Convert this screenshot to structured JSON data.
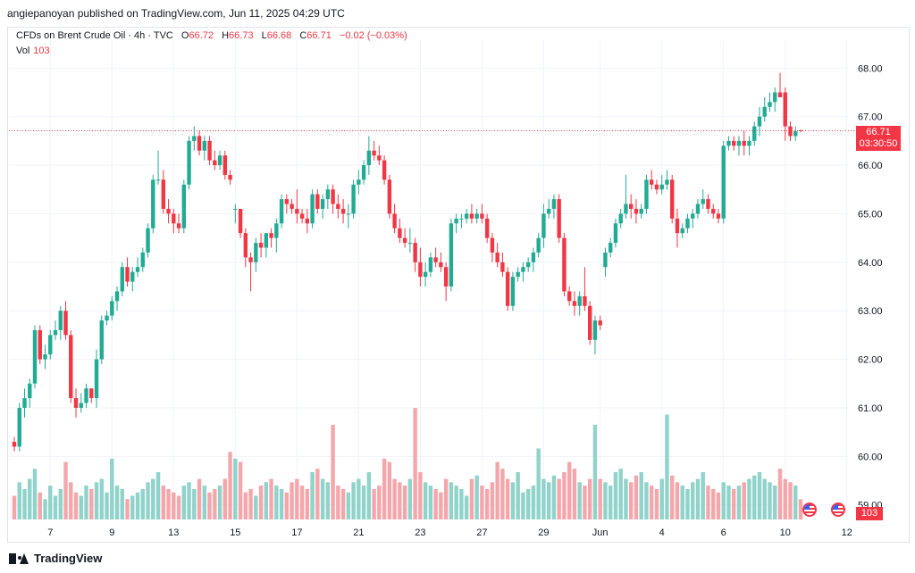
{
  "publisher_text": "angiepanoyan published on TradingView.com, Jun 11, 2025 04:29 UTC",
  "legend": {
    "symbol": "CFDs on Brent Crude Oil · 4h · TVC",
    "open_label": "O",
    "open": "66.72",
    "high_label": "H",
    "high": "66.73",
    "low_label": "L",
    "low": "66.68",
    "close_label": "C",
    "close": "66.71",
    "change": "−0.02 (−0.03%)"
  },
  "volume_legend": {
    "label": "Vol",
    "value": "103"
  },
  "price_badge": {
    "price": "66.71",
    "countdown": "03:30:50"
  },
  "volume_badge": "103",
  "footer": {
    "brand": "TradingView"
  },
  "colors": {
    "up": "#22ab94",
    "down": "#f23645",
    "vol_up": "#8fd3ca",
    "vol_down": "#f5a6ab",
    "grid": "#f0f3fa"
  },
  "chart_data": {
    "type": "candlestick",
    "title": "CFDs on Brent Crude Oil · 4h · TVC",
    "y_ticks": [
      "59.00",
      "60.00",
      "61.00",
      "62.00",
      "63.00",
      "64.00",
      "65.00",
      "66.00",
      "67.00",
      "68.00"
    ],
    "ylim": [
      58.7,
      68.3
    ],
    "x_ticks": [
      {
        "label": "7",
        "pos": 7
      },
      {
        "label": "9",
        "pos": 19
      },
      {
        "label": "13",
        "pos": 31
      },
      {
        "label": "15",
        "pos": 43
      },
      {
        "label": "17",
        "pos": 55
      },
      {
        "label": "21",
        "pos": 67
      },
      {
        "label": "23",
        "pos": 79
      },
      {
        "label": "27",
        "pos": 91
      },
      {
        "label": "29",
        "pos": 103
      },
      {
        "label": "Jun",
        "pos": 114
      },
      {
        "label": "4",
        "pos": 126
      },
      {
        "label": "6",
        "pos": 138
      },
      {
        "label": "10",
        "pos": 150
      },
      {
        "label": "12",
        "pos": 162
      }
    ],
    "last_price": 66.71,
    "candles": [
      [
        60.3,
        60.4,
        60.1,
        60.2
      ],
      [
        60.2,
        61.1,
        60.1,
        61.0
      ],
      [
        61.0,
        61.4,
        60.8,
        61.2
      ],
      [
        61.2,
        61.6,
        61.0,
        61.5
      ],
      [
        61.5,
        62.7,
        61.4,
        62.6
      ],
      [
        62.6,
        62.7,
        61.9,
        62.0
      ],
      [
        62.0,
        62.3,
        61.8,
        62.1
      ],
      [
        62.1,
        62.6,
        62.0,
        62.5
      ],
      [
        62.5,
        62.8,
        62.4,
        62.6
      ],
      [
        62.6,
        63.1,
        62.4,
        63.0
      ],
      [
        63.0,
        63.2,
        62.4,
        62.5
      ],
      [
        62.5,
        62.6,
        61.1,
        61.2
      ],
      [
        61.2,
        61.4,
        60.8,
        61.0
      ],
      [
        61.0,
        61.3,
        60.9,
        61.1
      ],
      [
        61.1,
        61.5,
        61.0,
        61.4
      ],
      [
        61.4,
        61.4,
        61.1,
        61.2
      ],
      [
        61.2,
        62.2,
        61.0,
        62.0
      ],
      [
        62.0,
        62.9,
        61.9,
        62.8
      ],
      [
        62.8,
        63.0,
        62.7,
        62.9
      ],
      [
        62.9,
        63.3,
        62.8,
        63.2
      ],
      [
        63.2,
        63.5,
        63.0,
        63.4
      ],
      [
        63.4,
        64.0,
        63.3,
        63.9
      ],
      [
        63.9,
        64.1,
        63.5,
        63.6
      ],
      [
        63.6,
        63.9,
        63.4,
        63.8
      ],
      [
        63.8,
        64.1,
        63.7,
        63.9
      ],
      [
        63.9,
        64.3,
        63.8,
        64.2
      ],
      [
        64.2,
        64.8,
        64.1,
        64.7
      ],
      [
        64.7,
        65.8,
        64.6,
        65.7
      ],
      [
        65.7,
        66.3,
        65.6,
        65.7
      ],
      [
        65.7,
        65.9,
        65.0,
        65.1
      ],
      [
        65.1,
        65.3,
        64.8,
        65.0
      ],
      [
        65.0,
        65.1,
        64.6,
        64.8
      ],
      [
        64.8,
        65.0,
        64.6,
        64.7
      ],
      [
        64.7,
        65.7,
        64.6,
        65.6
      ],
      [
        65.6,
        66.6,
        65.5,
        66.5
      ],
      [
        66.5,
        66.8,
        66.3,
        66.6
      ],
      [
        66.6,
        66.7,
        66.2,
        66.3
      ],
      [
        66.3,
        66.6,
        66.1,
        66.5
      ],
      [
        66.5,
        66.6,
        66.0,
        66.1
      ],
      [
        66.1,
        66.3,
        65.9,
        66.0
      ],
      [
        66.0,
        66.3,
        65.9,
        66.2
      ],
      [
        66.2,
        66.3,
        65.7,
        65.8
      ],
      [
        65.8,
        65.9,
        65.6,
        65.7
      ],
      [
        65.1,
        65.2,
        64.8,
        65.1
      ],
      [
        65.1,
        65.1,
        64.5,
        64.6
      ],
      [
        64.6,
        64.7,
        63.9,
        64.1
      ],
      [
        64.1,
        64.2,
        63.4,
        64.0
      ],
      [
        64.0,
        64.5,
        63.8,
        64.4
      ],
      [
        64.4,
        64.6,
        64.1,
        64.3
      ],
      [
        64.3,
        64.6,
        64.1,
        64.6
      ],
      [
        64.6,
        64.7,
        64.3,
        64.5
      ],
      [
        64.5,
        64.9,
        64.2,
        64.8
      ],
      [
        64.8,
        65.4,
        64.7,
        65.3
      ],
      [
        65.3,
        65.4,
        65.0,
        65.2
      ],
      [
        65.2,
        65.3,
        65.0,
        65.1
      ],
      [
        65.1,
        65.5,
        64.8,
        65.0
      ],
      [
        65.0,
        65.1,
        64.8,
        64.9
      ],
      [
        64.9,
        65.1,
        64.6,
        64.8
      ],
      [
        64.8,
        65.5,
        64.7,
        65.4
      ],
      [
        65.4,
        65.5,
        65.0,
        65.1
      ],
      [
        65.1,
        65.4,
        64.9,
        65.3
      ],
      [
        65.3,
        65.6,
        65.1,
        65.5
      ],
      [
        65.5,
        65.6,
        65.0,
        65.2
      ],
      [
        65.2,
        65.4,
        64.9,
        65.1
      ],
      [
        65.1,
        65.3,
        64.8,
        65.0
      ],
      [
        65.0,
        65.2,
        64.7,
        65.0
      ],
      [
        65.0,
        65.7,
        64.9,
        65.6
      ],
      [
        65.6,
        65.9,
        65.4,
        65.7
      ],
      [
        65.7,
        66.1,
        65.6,
        66.0
      ],
      [
        66.0,
        66.6,
        65.8,
        66.3
      ],
      [
        66.3,
        66.5,
        66.1,
        66.2
      ],
      [
        66.2,
        66.4,
        66.0,
        66.1
      ],
      [
        66.1,
        66.2,
        65.6,
        65.7
      ],
      [
        65.7,
        65.8,
        64.9,
        65.0
      ],
      [
        65.0,
        65.2,
        64.6,
        64.7
      ],
      [
        64.7,
        64.9,
        64.4,
        64.5
      ],
      [
        64.5,
        64.7,
        64.3,
        64.4
      ],
      [
        64.4,
        64.7,
        64.2,
        64.4
      ],
      [
        64.4,
        64.5,
        63.8,
        64.0
      ],
      [
        64.0,
        64.3,
        63.5,
        63.7
      ],
      [
        63.7,
        64.0,
        63.5,
        63.8
      ],
      [
        63.8,
        64.2,
        63.7,
        64.1
      ],
      [
        64.1,
        64.3,
        63.9,
        64.0
      ],
      [
        64.0,
        64.2,
        63.8,
        63.9
      ],
      [
        63.9,
        64.0,
        63.2,
        63.5
      ],
      [
        63.5,
        64.9,
        63.4,
        64.8
      ],
      [
        64.8,
        65.0,
        64.6,
        64.9
      ],
      [
        64.9,
        65.0,
        64.7,
        64.9
      ],
      [
        64.9,
        65.1,
        64.8,
        65.0
      ],
      [
        65.0,
        65.2,
        64.8,
        64.9
      ],
      [
        64.9,
        65.1,
        64.8,
        65.0
      ],
      [
        65.0,
        65.2,
        64.8,
        64.9
      ],
      [
        64.9,
        65.0,
        64.4,
        64.5
      ],
      [
        64.5,
        64.6,
        64.0,
        64.2
      ],
      [
        64.2,
        64.4,
        63.9,
        64.0
      ],
      [
        64.0,
        64.2,
        63.7,
        63.8
      ],
      [
        63.8,
        63.9,
        63.0,
        63.1
      ],
      [
        63.1,
        63.8,
        63.0,
        63.7
      ],
      [
        63.7,
        63.9,
        63.6,
        63.8
      ],
      [
        63.8,
        64.0,
        63.6,
        63.9
      ],
      [
        63.9,
        64.1,
        63.8,
        64.0
      ],
      [
        64.0,
        64.3,
        63.8,
        64.2
      ],
      [
        64.2,
        64.6,
        64.1,
        64.5
      ],
      [
        64.5,
        65.2,
        64.3,
        65.0
      ],
      [
        65.0,
        65.3,
        64.9,
        65.1
      ],
      [
        65.1,
        65.4,
        64.9,
        65.3
      ],
      [
        65.3,
        65.4,
        64.4,
        64.5
      ],
      [
        64.5,
        64.6,
        63.3,
        63.4
      ],
      [
        63.4,
        63.5,
        63.1,
        63.2
      ],
      [
        63.2,
        63.4,
        62.9,
        63.1
      ],
      [
        63.1,
        63.4,
        62.9,
        63.3
      ],
      [
        63.3,
        63.9,
        63.0,
        63.1
      ],
      [
        63.1,
        63.2,
        62.3,
        62.4
      ],
      [
        62.4,
        62.9,
        62.1,
        62.8
      ],
      [
        62.8,
        62.9,
        62.6,
        62.7
      ],
      [
        63.9,
        64.3,
        63.7,
        64.2
      ],
      [
        64.2,
        64.5,
        64.1,
        64.4
      ],
      [
        64.4,
        64.9,
        64.3,
        64.8
      ],
      [
        64.8,
        65.1,
        64.7,
        65.0
      ],
      [
        65.0,
        65.8,
        64.9,
        65.2
      ],
      [
        65.2,
        65.4,
        64.9,
        65.1
      ],
      [
        65.1,
        65.3,
        64.8,
        65.0
      ],
      [
        65.0,
        65.2,
        64.9,
        65.1
      ],
      [
        65.1,
        65.8,
        65.0,
        65.7
      ],
      [
        65.7,
        65.9,
        65.5,
        65.6
      ],
      [
        65.6,
        65.7,
        65.4,
        65.5
      ],
      [
        65.5,
        65.8,
        65.4,
        65.6
      ],
      [
        65.6,
        65.9,
        65.5,
        65.7
      ],
      [
        65.7,
        65.8,
        64.8,
        64.9
      ],
      [
        64.9,
        65.1,
        64.3,
        64.6
      ],
      [
        64.6,
        64.8,
        64.5,
        64.7
      ],
      [
        64.7,
        65.0,
        64.6,
        64.9
      ],
      [
        64.9,
        65.1,
        64.7,
        65.0
      ],
      [
        65.0,
        65.3,
        64.9,
        65.2
      ],
      [
        65.2,
        65.5,
        65.1,
        65.3
      ],
      [
        65.3,
        65.4,
        65.0,
        65.1
      ],
      [
        65.1,
        65.2,
        64.9,
        65.0
      ],
      [
        65.0,
        65.1,
        64.8,
        64.9
      ],
      [
        64.9,
        66.5,
        64.8,
        66.4
      ],
      [
        66.4,
        66.6,
        66.3,
        66.5
      ],
      [
        66.5,
        66.6,
        66.3,
        66.4
      ],
      [
        66.4,
        66.6,
        66.2,
        66.5
      ],
      [
        66.5,
        66.7,
        66.2,
        66.4
      ],
      [
        66.4,
        66.6,
        66.2,
        66.5
      ],
      [
        66.5,
        66.9,
        66.4,
        66.8
      ],
      [
        66.8,
        67.2,
        66.6,
        67.0
      ],
      [
        67.0,
        67.4,
        66.9,
        67.2
      ],
      [
        67.2,
        67.5,
        67.1,
        67.3
      ],
      [
        67.3,
        67.6,
        67.1,
        67.5
      ],
      [
        67.5,
        67.9,
        67.4,
        67.4
      ],
      [
        67.5,
        67.6,
        66.5,
        66.8
      ],
      [
        66.8,
        66.9,
        66.5,
        66.6
      ],
      [
        66.6,
        66.8,
        66.5,
        66.7
      ],
      [
        66.72,
        66.73,
        66.68,
        66.71
      ]
    ],
    "volumes": [
      0.35,
      0.55,
      0.45,
      0.6,
      0.75,
      0.4,
      0.3,
      0.5,
      0.35,
      0.45,
      0.85,
      0.55,
      0.4,
      0.35,
      0.5,
      0.45,
      0.55,
      0.6,
      0.4,
      0.9,
      0.5,
      0.45,
      0.3,
      0.35,
      0.4,
      0.45,
      0.55,
      0.6,
      0.7,
      0.5,
      0.45,
      0.4,
      0.35,
      0.5,
      0.55,
      0.45,
      0.6,
      0.5,
      0.4,
      0.45,
      0.5,
      0.6,
      1.0,
      0.9,
      0.85,
      0.4,
      0.45,
      0.35,
      0.5,
      0.55,
      0.6,
      0.5,
      0.45,
      0.4,
      0.55,
      0.6,
      0.5,
      0.45,
      0.7,
      0.75,
      0.6,
      0.55,
      1.4,
      0.5,
      0.45,
      0.4,
      0.55,
      0.6,
      0.5,
      0.7,
      0.45,
      0.5,
      0.9,
      0.85,
      0.6,
      0.55,
      0.5,
      0.6,
      1.65,
      0.7,
      0.55,
      0.5,
      0.45,
      0.4,
      0.6,
      0.55,
      0.5,
      0.45,
      0.35,
      0.6,
      0.65,
      0.5,
      0.45,
      0.55,
      0.85,
      0.75,
      0.6,
      0.55,
      0.7,
      0.4,
      0.45,
      0.5,
      1.05,
      0.6,
      0.55,
      0.65,
      0.6,
      0.7,
      0.85,
      0.75,
      0.55,
      0.5,
      0.6,
      1.4,
      0.6,
      0.55,
      0.5,
      0.7,
      0.75,
      0.6,
      0.55,
      0.65,
      0.7,
      0.55,
      0.5,
      0.45,
      0.6,
      1.55,
      0.65,
      0.55,
      0.5,
      0.45,
      0.55,
      0.6,
      0.7,
      0.5,
      0.45,
      0.4,
      0.55,
      0.5,
      0.45,
      0.5,
      0.55,
      0.6,
      0.65,
      0.7,
      0.6,
      0.55,
      0.5,
      0.75,
      0.6,
      0.55,
      0.5,
      0.3
    ]
  }
}
